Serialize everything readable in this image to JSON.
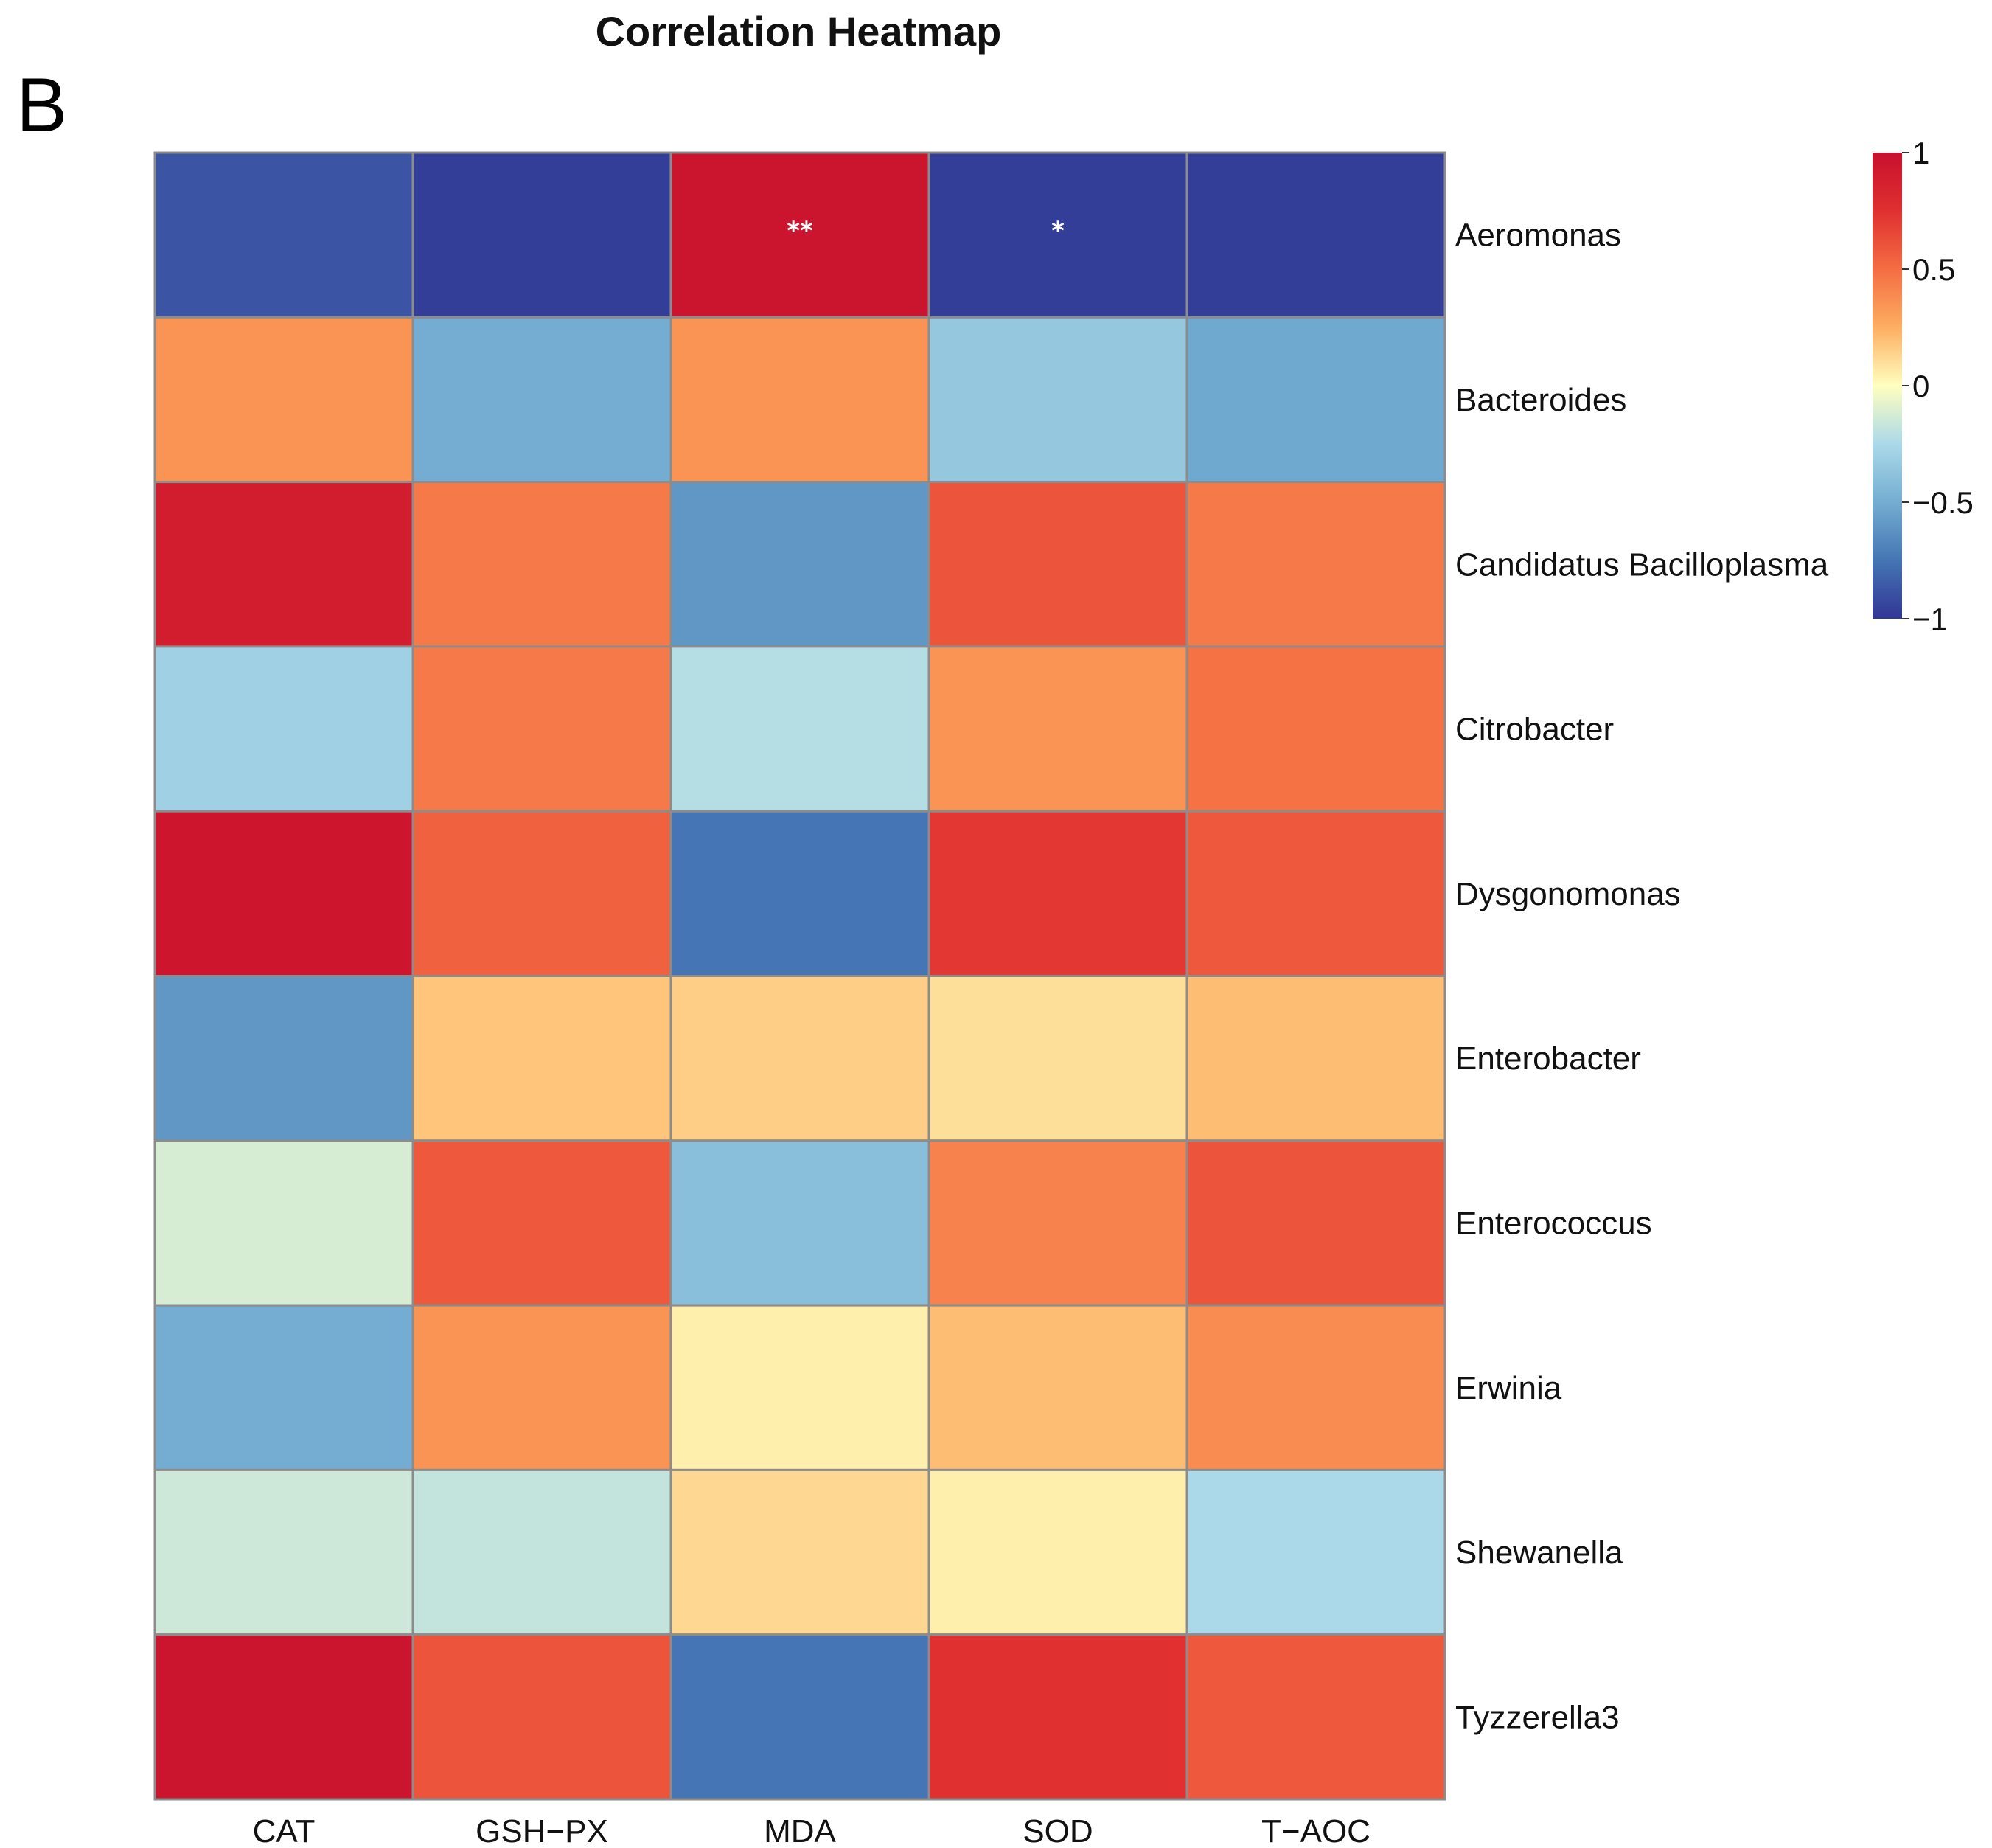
{
  "panel_label": "B",
  "chart_data": {
    "type": "heatmap",
    "title": "Correlation Heatmap",
    "columns": [
      "CAT",
      "GSH−PX",
      "MDA",
      "SOD",
      "T−AOC"
    ],
    "rows": [
      "Aeromonas",
      "Bacteroides",
      "Candidatus Bacilloplasma",
      "Citrobacter",
      "Dysgonomonas",
      "Enterobacter",
      "Enterococcus",
      "Erwinia",
      "Shewanella",
      "Tyzzerella3"
    ],
    "values": [
      [
        -0.88,
        -0.97,
        0.97,
        -0.97,
        -0.97
      ],
      [
        0.35,
        -0.5,
        0.35,
        -0.35,
        -0.52
      ],
      [
        0.9,
        0.45,
        -0.6,
        0.6,
        0.45
      ],
      [
        -0.3,
        0.45,
        -0.22,
        0.35,
        0.48
      ],
      [
        0.95,
        0.55,
        -0.75,
        0.72,
        0.58
      ],
      [
        -0.6,
        0.18,
        0.15,
        0.1,
        0.2
      ],
      [
        -0.12,
        0.58,
        -0.4,
        0.42,
        0.6
      ],
      [
        -0.5,
        0.35,
        0.05,
        0.2,
        0.38
      ],
      [
        -0.15,
        -0.18,
        0.12,
        0.05,
        -0.25
      ],
      [
        0.97,
        0.6,
        -0.75,
        0.75,
        0.58
      ]
    ],
    "significance": [
      [
        "",
        "",
        "**",
        "*",
        ""
      ],
      [
        "",
        "",
        "",
        "",
        ""
      ],
      [
        "",
        "",
        "",
        "",
        ""
      ],
      [
        "",
        "",
        "",
        "",
        ""
      ],
      [
        "",
        "",
        "",
        "",
        ""
      ],
      [
        "",
        "",
        "",
        "",
        ""
      ],
      [
        "",
        "",
        "",
        "",
        ""
      ],
      [
        "",
        "",
        "",
        "",
        ""
      ],
      [
        "",
        "",
        "",
        "",
        ""
      ],
      [
        "",
        "",
        "",
        "",
        ""
      ]
    ],
    "color_scale": {
      "min": -1,
      "max": 1,
      "stops": [
        {
          "v": -1,
          "color": "#313695"
        },
        {
          "v": -0.75,
          "color": "#4575b4"
        },
        {
          "v": -0.5,
          "color": "#74add1"
        },
        {
          "v": -0.25,
          "color": "#abd9e9"
        },
        {
          "v": 0,
          "color": "#ffffbf"
        },
        {
          "v": 0.25,
          "color": "#fdae61"
        },
        {
          "v": 0.5,
          "color": "#f46d43"
        },
        {
          "v": 0.75,
          "color": "#e03030"
        },
        {
          "v": 1,
          "color": "#c8102e"
        }
      ],
      "ticks": [
        1,
        0.5,
        0,
        -0.5,
        -1
      ],
      "tick_labels": [
        "1",
        "0.5",
        "0",
        "−0.5",
        "−1"
      ]
    }
  }
}
